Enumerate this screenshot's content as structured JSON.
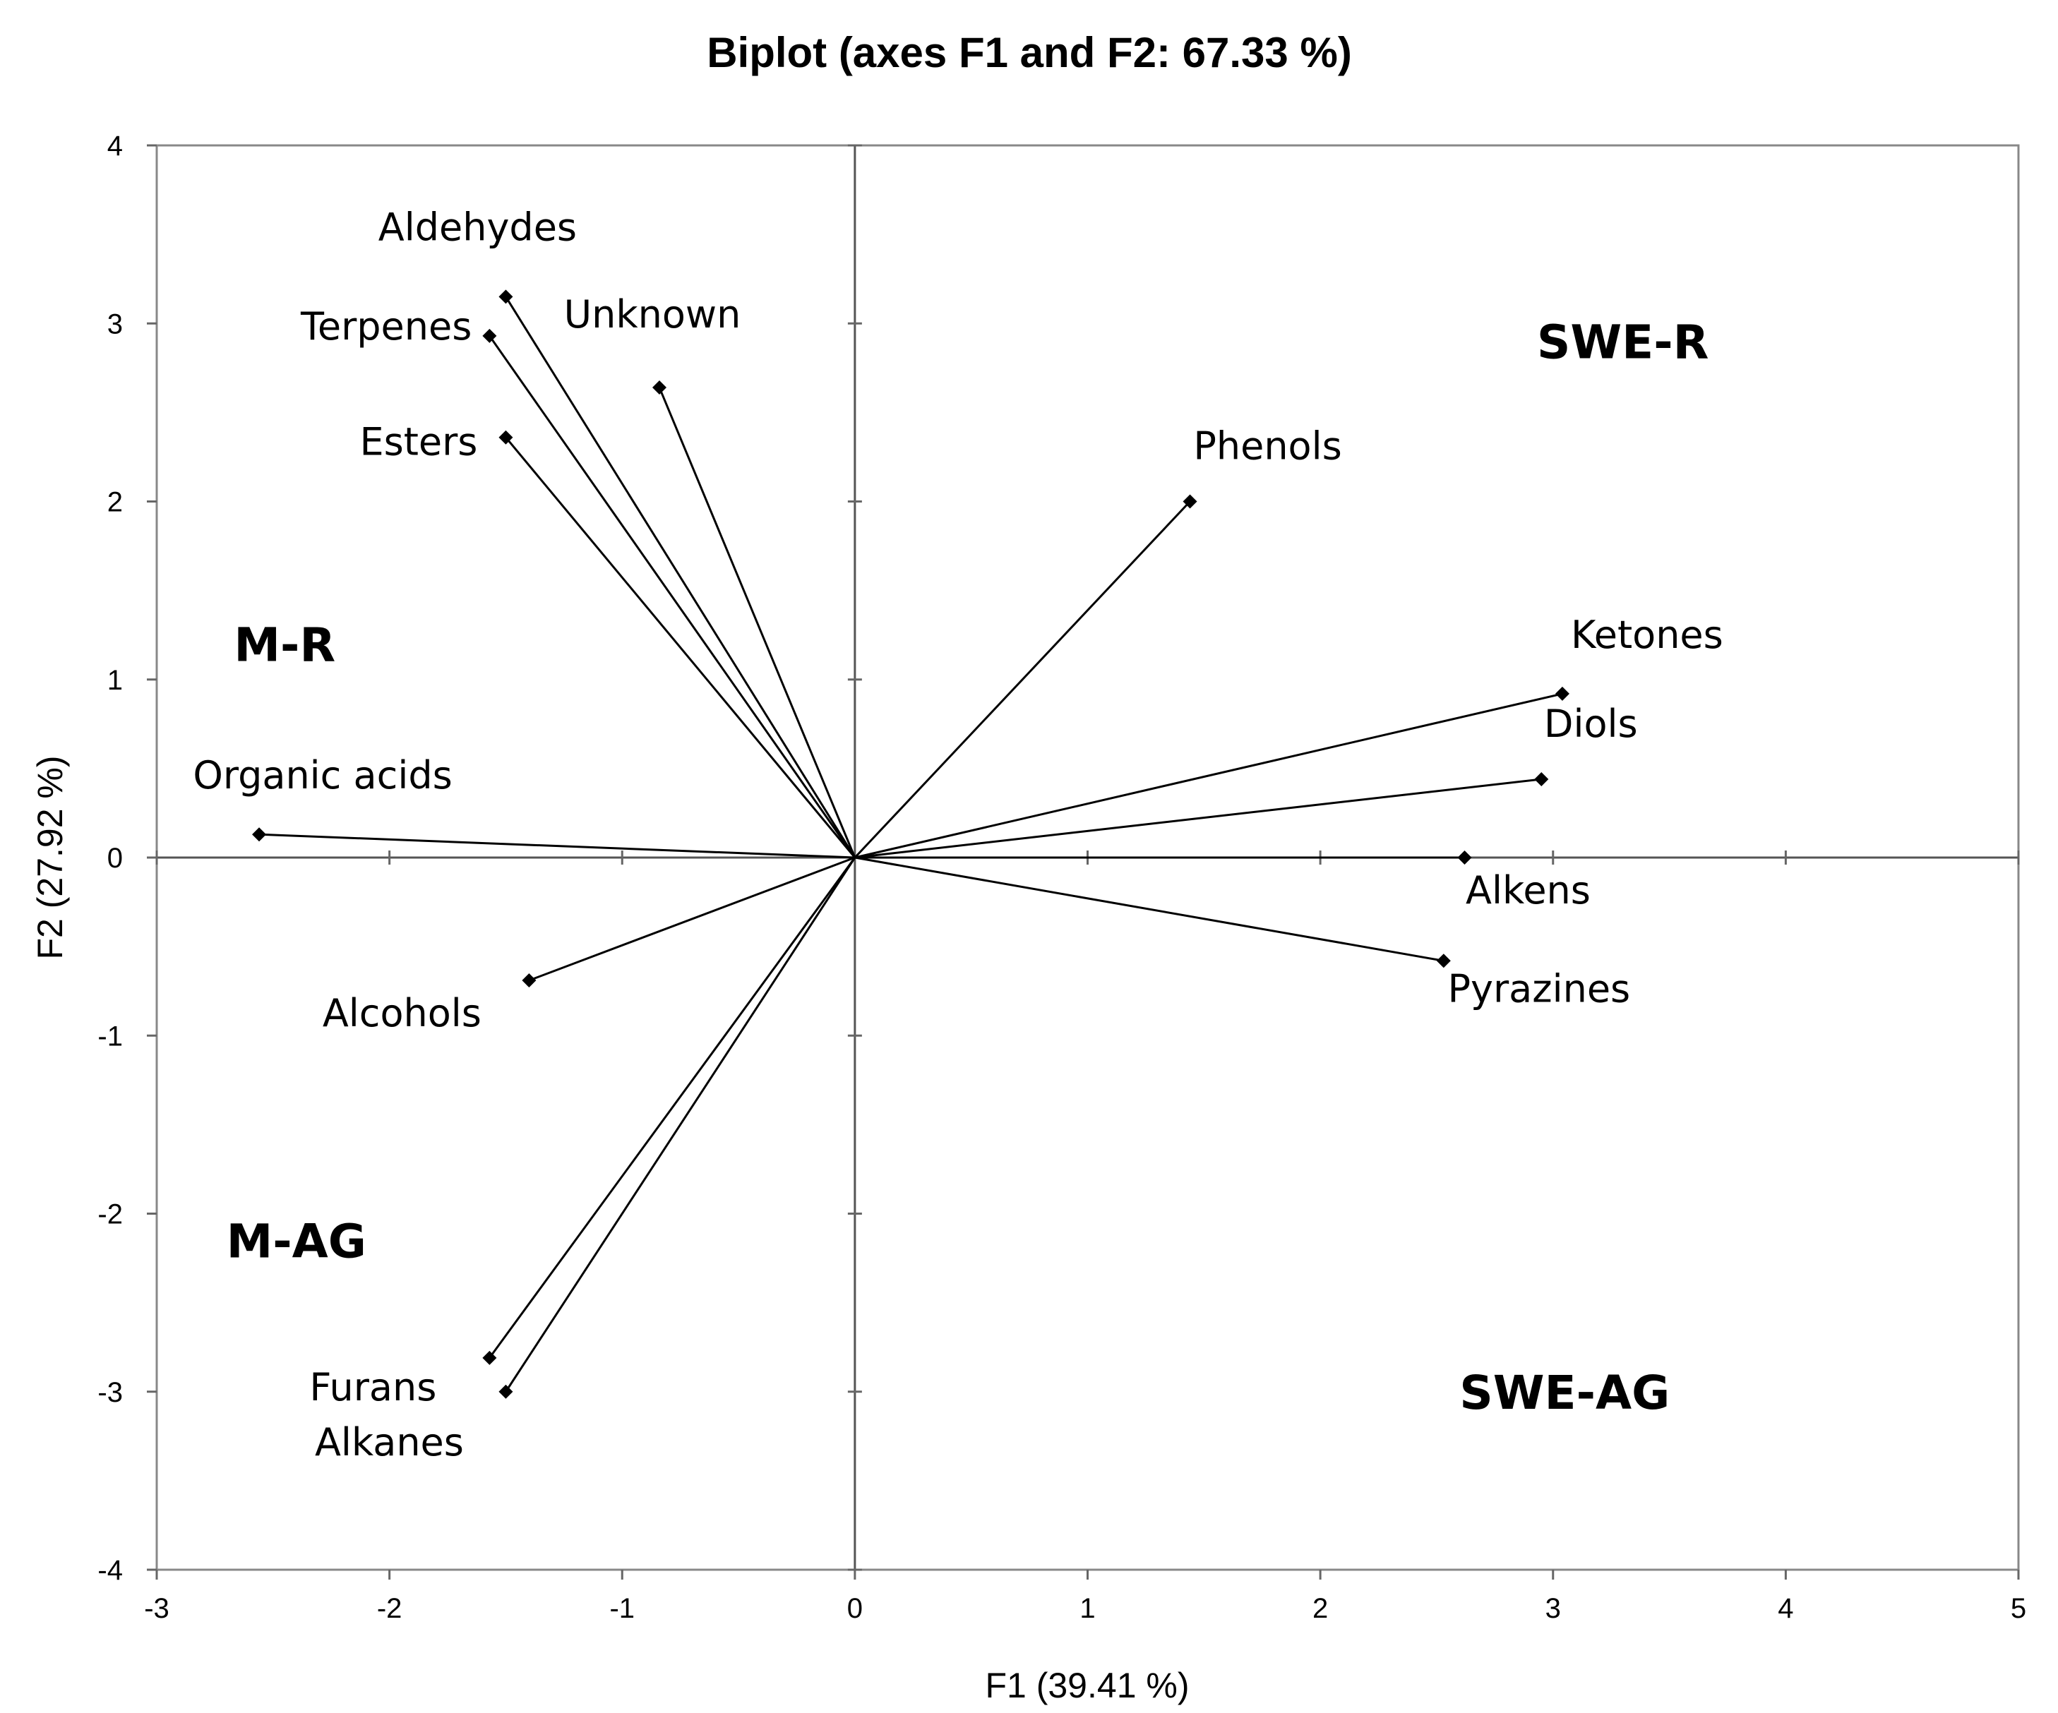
{
  "chart_data": {
    "type": "scatter",
    "subtype": "biplot",
    "title": "Biplot (axes F1 and F2: 67.33 %)",
    "xlabel": "F1 (39.41 %)",
    "ylabel": "F2 (27.92 %)",
    "xlim": [
      -3,
      5
    ],
    "ylim": [
      -4,
      4
    ],
    "xticks": [
      -3,
      -2,
      -1,
      0,
      1,
      2,
      3,
      4,
      5
    ],
    "yticks": [
      -4,
      -3,
      -2,
      -1,
      0,
      1,
      2,
      3,
      4
    ],
    "grid": false,
    "variables": [
      {
        "name": "Aldehydes",
        "x": -1.5,
        "y": 3.15
      },
      {
        "name": "Terpenes",
        "x": -1.57,
        "y": 2.93
      },
      {
        "name": "Unknown",
        "x": -0.84,
        "y": 2.64
      },
      {
        "name": "Esters",
        "x": -1.5,
        "y": 2.36
      },
      {
        "name": "Phenols",
        "x": 1.44,
        "y": 2.0
      },
      {
        "name": "Ketones",
        "x": 3.04,
        "y": 0.92
      },
      {
        "name": "Diols",
        "x": 2.95,
        "y": 0.44
      },
      {
        "name": "Organic acids",
        "x": -2.56,
        "y": 0.13
      },
      {
        "name": "Alkens",
        "x": 2.62,
        "y": 0.0
      },
      {
        "name": "Pyrazines",
        "x": 2.53,
        "y": -0.58
      },
      {
        "name": "Alcohols",
        "x": -1.4,
        "y": -0.69
      },
      {
        "name": "Furans",
        "x": -1.57,
        "y": -2.81
      },
      {
        "name": "Alkanes",
        "x": -1.5,
        "y": -3.0
      }
    ],
    "groups": [
      {
        "name": "SWE-R",
        "x": 3.3,
        "y": 2.9
      },
      {
        "name": "M-R",
        "x": -2.45,
        "y": 1.2
      },
      {
        "name": "M-AG",
        "x": -2.4,
        "y": -2.15
      },
      {
        "name": "SWE-AG",
        "x": 3.05,
        "y": -3.0
      }
    ]
  }
}
